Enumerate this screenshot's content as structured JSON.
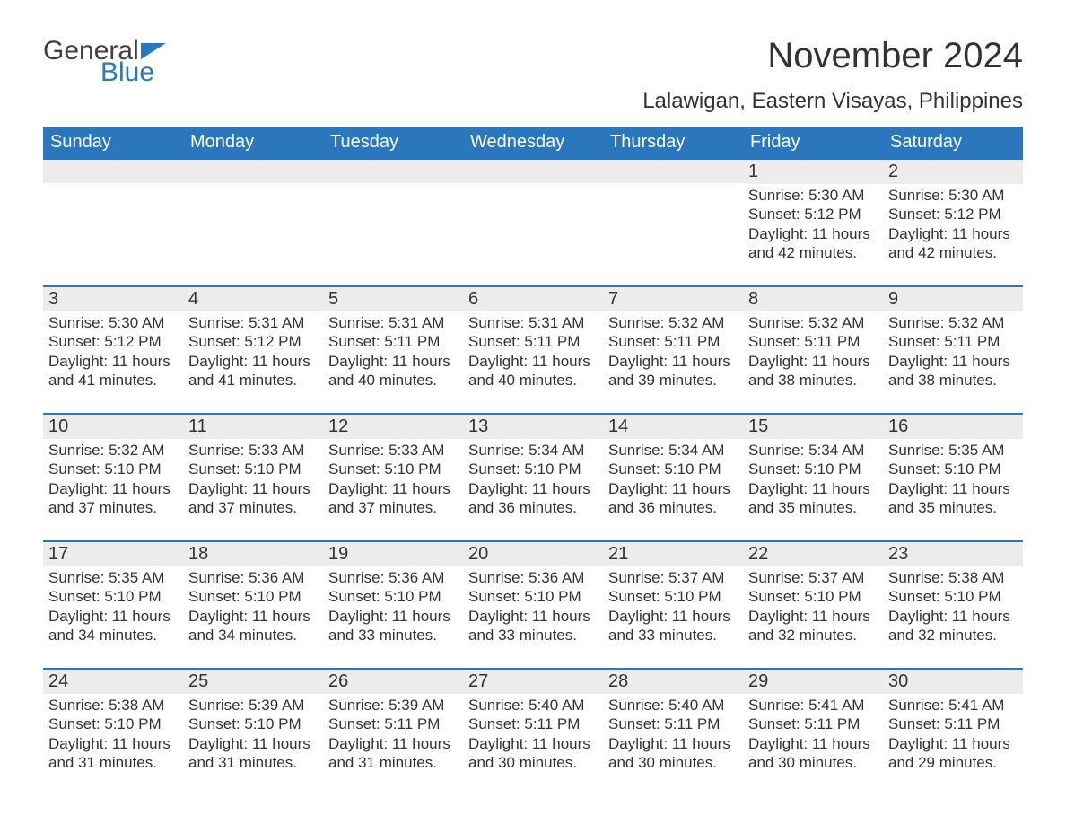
{
  "logo": {
    "word1": "General",
    "word2": "Blue"
  },
  "title": "November 2024",
  "location": "Lalawigan, Eastern Visayas, Philippines",
  "colors": {
    "brand_blue": "#2b77bd",
    "header_bg": "#2b77bd",
    "header_text": "#ffffff",
    "daynum_bg": "#ececec",
    "cell_border_top": "#2b77bd",
    "body_text": "#333333",
    "background": "#ffffff"
  },
  "fonts": {
    "title_size": 40,
    "location_size": 24,
    "weekday_size": 20,
    "daynum_size": 20,
    "content_size": 17
  },
  "layout": {
    "columns": 7,
    "rows": 5,
    "first_day_column": 5,
    "cell_min_height": 126
  },
  "weekdays": [
    "Sunday",
    "Monday",
    "Tuesday",
    "Wednesday",
    "Thursday",
    "Friday",
    "Saturday"
  ],
  "labels": {
    "sunrise": "Sunrise:",
    "sunset": "Sunset:",
    "daylight": "Daylight:"
  },
  "days": [
    {
      "n": 1,
      "sunrise": "5:30 AM",
      "sunset": "5:12 PM",
      "daylight": "11 hours and 42 minutes."
    },
    {
      "n": 2,
      "sunrise": "5:30 AM",
      "sunset": "5:12 PM",
      "daylight": "11 hours and 42 minutes."
    },
    {
      "n": 3,
      "sunrise": "5:30 AM",
      "sunset": "5:12 PM",
      "daylight": "11 hours and 41 minutes."
    },
    {
      "n": 4,
      "sunrise": "5:31 AM",
      "sunset": "5:12 PM",
      "daylight": "11 hours and 41 minutes."
    },
    {
      "n": 5,
      "sunrise": "5:31 AM",
      "sunset": "5:11 PM",
      "daylight": "11 hours and 40 minutes."
    },
    {
      "n": 6,
      "sunrise": "5:31 AM",
      "sunset": "5:11 PM",
      "daylight": "11 hours and 40 minutes."
    },
    {
      "n": 7,
      "sunrise": "5:32 AM",
      "sunset": "5:11 PM",
      "daylight": "11 hours and 39 minutes."
    },
    {
      "n": 8,
      "sunrise": "5:32 AM",
      "sunset": "5:11 PM",
      "daylight": "11 hours and 38 minutes."
    },
    {
      "n": 9,
      "sunrise": "5:32 AM",
      "sunset": "5:11 PM",
      "daylight": "11 hours and 38 minutes."
    },
    {
      "n": 10,
      "sunrise": "5:32 AM",
      "sunset": "5:10 PM",
      "daylight": "11 hours and 37 minutes."
    },
    {
      "n": 11,
      "sunrise": "5:33 AM",
      "sunset": "5:10 PM",
      "daylight": "11 hours and 37 minutes."
    },
    {
      "n": 12,
      "sunrise": "5:33 AM",
      "sunset": "5:10 PM",
      "daylight": "11 hours and 37 minutes."
    },
    {
      "n": 13,
      "sunrise": "5:34 AM",
      "sunset": "5:10 PM",
      "daylight": "11 hours and 36 minutes."
    },
    {
      "n": 14,
      "sunrise": "5:34 AM",
      "sunset": "5:10 PM",
      "daylight": "11 hours and 36 minutes."
    },
    {
      "n": 15,
      "sunrise": "5:34 AM",
      "sunset": "5:10 PM",
      "daylight": "11 hours and 35 minutes."
    },
    {
      "n": 16,
      "sunrise": "5:35 AM",
      "sunset": "5:10 PM",
      "daylight": "11 hours and 35 minutes."
    },
    {
      "n": 17,
      "sunrise": "5:35 AM",
      "sunset": "5:10 PM",
      "daylight": "11 hours and 34 minutes."
    },
    {
      "n": 18,
      "sunrise": "5:36 AM",
      "sunset": "5:10 PM",
      "daylight": "11 hours and 34 minutes."
    },
    {
      "n": 19,
      "sunrise": "5:36 AM",
      "sunset": "5:10 PM",
      "daylight": "11 hours and 33 minutes."
    },
    {
      "n": 20,
      "sunrise": "5:36 AM",
      "sunset": "5:10 PM",
      "daylight": "11 hours and 33 minutes."
    },
    {
      "n": 21,
      "sunrise": "5:37 AM",
      "sunset": "5:10 PM",
      "daylight": "11 hours and 33 minutes."
    },
    {
      "n": 22,
      "sunrise": "5:37 AM",
      "sunset": "5:10 PM",
      "daylight": "11 hours and 32 minutes."
    },
    {
      "n": 23,
      "sunrise": "5:38 AM",
      "sunset": "5:10 PM",
      "daylight": "11 hours and 32 minutes."
    },
    {
      "n": 24,
      "sunrise": "5:38 AM",
      "sunset": "5:10 PM",
      "daylight": "11 hours and 31 minutes."
    },
    {
      "n": 25,
      "sunrise": "5:39 AM",
      "sunset": "5:10 PM",
      "daylight": "11 hours and 31 minutes."
    },
    {
      "n": 26,
      "sunrise": "5:39 AM",
      "sunset": "5:11 PM",
      "daylight": "11 hours and 31 minutes."
    },
    {
      "n": 27,
      "sunrise": "5:40 AM",
      "sunset": "5:11 PM",
      "daylight": "11 hours and 30 minutes."
    },
    {
      "n": 28,
      "sunrise": "5:40 AM",
      "sunset": "5:11 PM",
      "daylight": "11 hours and 30 minutes."
    },
    {
      "n": 29,
      "sunrise": "5:41 AM",
      "sunset": "5:11 PM",
      "daylight": "11 hours and 30 minutes."
    },
    {
      "n": 30,
      "sunrise": "5:41 AM",
      "sunset": "5:11 PM",
      "daylight": "11 hours and 29 minutes."
    }
  ]
}
